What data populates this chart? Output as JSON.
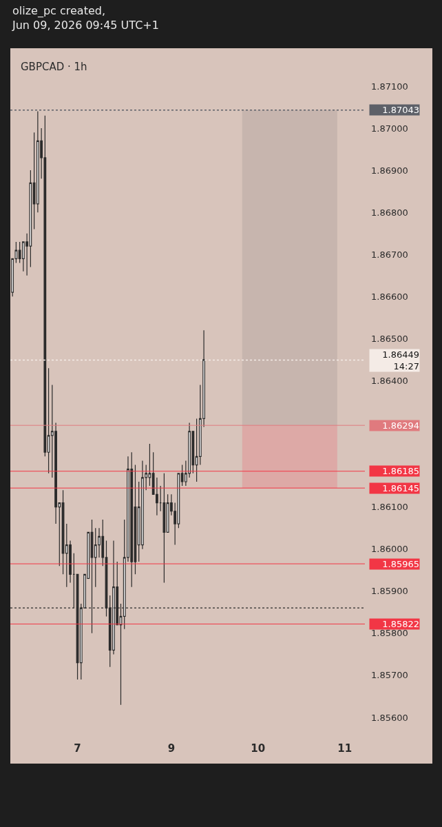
{
  "chart_data": {
    "type": "candlestick",
    "title": "GBPCAD · 1h",
    "annotations": [
      "olize_pc created,\nJun 09, 2026 09:45 UTC+1"
    ],
    "categories": [
      null,
      null,
      null,
      null,
      null,
      null,
      null,
      null,
      null,
      null,
      null,
      null,
      null,
      null,
      null,
      null,
      null,
      null,
      "7",
      null,
      null,
      null,
      null,
      null,
      null,
      null,
      null,
      null,
      null,
      null,
      null,
      null,
      null,
      null,
      null,
      null,
      null,
      null,
      null,
      null,
      null,
      null,
      null,
      null,
      "9",
      null,
      null,
      null,
      null,
      null,
      null,
      null,
      null,
      null,
      null,
      null,
      null,
      null,
      null,
      null,
      null,
      null,
      null,
      null,
      null,
      null,
      null,
      null,
      "10",
      null,
      null,
      null,
      null,
      null,
      null,
      null,
      null,
      null,
      null,
      null,
      null,
      null,
      null,
      null,
      null,
      null,
      null,
      null,
      null,
      null,
      null,
      null,
      "11",
      null,
      null,
      null,
      null,
      null
    ],
    "color": "#2b2b2b",
    "ohlc": [
      [
        1.8661,
        1.8669,
        1.866,
        1.8669
      ],
      [
        1.8669,
        1.8673,
        1.8668,
        1.8671
      ],
      [
        1.8671,
        1.8673,
        1.8668,
        1.8669
      ],
      [
        1.8669,
        1.8673,
        1.8666,
        1.8673
      ],
      [
        1.8673,
        1.8675,
        1.8665,
        1.8672
      ],
      [
        1.8672,
        1.869,
        1.8667,
        1.8687
      ],
      [
        1.8687,
        1.8699,
        1.8676,
        1.8682
      ],
      [
        1.8682,
        1.8704,
        1.868,
        1.8697
      ],
      [
        1.8697,
        1.87,
        1.8688,
        1.8693
      ],
      [
        1.8693,
        1.8703,
        1.8622,
        1.8623
      ],
      [
        1.8623,
        1.8643,
        1.8618,
        1.8627
      ],
      [
        1.8627,
        1.8639,
        1.8617,
        1.8628
      ],
      [
        1.8628,
        1.863,
        1.8606,
        1.861
      ],
      [
        1.861,
        1.8611,
        1.8596,
        1.8611
      ],
      [
        1.8611,
        1.8614,
        1.8594,
        1.8599
      ],
      [
        1.8599,
        1.8606,
        1.8591,
        1.8601
      ],
      [
        1.8601,
        1.8602,
        1.8592,
        1.8594
      ],
      [
        1.8594,
        1.8599,
        1.8586,
        1.8594
      ],
      [
        1.8594,
        1.8594,
        1.8569,
        1.8573
      ],
      [
        1.8573,
        1.8587,
        1.8569,
        1.8586
      ],
      [
        1.8586,
        1.8594,
        1.8586,
        1.8594
      ],
      [
        1.8593,
        1.8604,
        1.8593,
        1.8604
      ],
      [
        1.8604,
        1.8607,
        1.858,
        1.8598
      ],
      [
        1.8598,
        1.8605,
        1.8591,
        1.8601
      ],
      [
        1.8601,
        1.8605,
        1.8598,
        1.8603
      ],
      [
        1.8603,
        1.8607,
        1.8596,
        1.8598
      ],
      [
        1.8598,
        1.8602,
        1.8584,
        1.8586
      ],
      [
        1.8586,
        1.8589,
        1.8572,
        1.8576
      ],
      [
        1.8576,
        1.8602,
        1.8575,
        1.8591
      ],
      [
        1.8591,
        1.8597,
        1.8582,
        1.8582
      ],
      [
        1.8582,
        1.8587,
        1.8563,
        1.8584
      ],
      [
        1.8584,
        1.8607,
        1.8581,
        1.8598
      ],
      [
        1.8598,
        1.8622,
        1.8597,
        1.8619
      ],
      [
        1.8619,
        1.8623,
        1.8591,
        1.8597
      ],
      [
        1.861,
        1.862,
        1.8594,
        1.8597
      ],
      [
        1.8601,
        1.8616,
        1.8597,
        1.861
      ],
      [
        1.8601,
        1.8621,
        1.86,
        1.8617
      ],
      [
        1.8617,
        1.862,
        1.8614,
        1.8618
      ],
      [
        1.8617,
        1.8625,
        1.8615,
        1.8618
      ],
      [
        1.8618,
        1.8623,
        1.8613,
        1.8613
      ],
      [
        1.8613,
        1.8617,
        1.8608,
        1.8611
      ],
      [
        1.8611,
        1.8615,
        1.8609,
        1.8611
      ],
      [
        1.8611,
        1.8618,
        1.8592,
        1.8604
      ],
      [
        1.8604,
        1.8613,
        1.8604,
        1.8611
      ],
      [
        1.8611,
        1.8613,
        1.8608,
        1.8609
      ],
      [
        1.8609,
        1.8611,
        1.8601,
        1.8606
      ],
      [
        1.8606,
        1.8618,
        1.8605,
        1.8618
      ],
      [
        1.8618,
        1.862,
        1.8615,
        1.8616
      ],
      [
        1.8616,
        1.8621,
        1.8615,
        1.8618
      ],
      [
        1.8618,
        1.863,
        1.8617,
        1.8628
      ],
      [
        1.8628,
        1.8628,
        1.8618,
        1.862
      ],
      [
        1.862,
        1.8631,
        1.8616,
        1.8622
      ],
      [
        1.8622,
        1.8639,
        1.862,
        1.8631
      ],
      [
        1.8631,
        1.8652,
        1.8629,
        1.8645
      ],
      null,
      null,
      null,
      null,
      null,
      null,
      null,
      null,
      null,
      null,
      null,
      null,
      null,
      null,
      null,
      null,
      null,
      null,
      null,
      null,
      null,
      null,
      null,
      null,
      null,
      null,
      null,
      null,
      null,
      null,
      null,
      null,
      null,
      null,
      null,
      null,
      null,
      null,
      null,
      null,
      null,
      null,
      null,
      null
    ],
    "ylim": [
      1.856,
      1.8719
    ],
    "yticks": [
      {
        "value": 1.856,
        "label": "1.85600"
      },
      {
        "value": 1.857,
        "label": "1.85700"
      },
      {
        "value": 1.858,
        "label": "1.85800"
      },
      {
        "value": 1.859,
        "label": "1.85900"
      },
      {
        "value": 1.86,
        "label": "1.86000"
      },
      {
        "value": 1.861,
        "label": "1.86100"
      },
      {
        "value": 1.864,
        "label": "1.86400"
      },
      {
        "value": 1.865,
        "label": "1.86500"
      },
      {
        "value": 1.866,
        "label": "1.86600"
      },
      {
        "value": 1.867,
        "label": "1.86700"
      },
      {
        "value": 1.868,
        "label": "1.86800"
      },
      {
        "value": 1.869,
        "label": "1.86900"
      },
      {
        "value": 1.87,
        "label": "1.87000"
      },
      {
        "value": 1.871,
        "label": "1.87100"
      }
    ],
    "ref_lines": [
      {
        "axis": "y",
        "value": 1.87043,
        "label": "1.87043",
        "color": "#5d6068",
        "line_style": "dotted"
      },
      {
        "axis": "y",
        "value": 1.86449,
        "label": "1.86449\n14:27",
        "color": "#f4ebe6",
        "line_style": "dotted"
      },
      {
        "axis": "y",
        "value": 1.86294,
        "label": "1.86294",
        "color": "#e07a7e",
        "line_style": "solid"
      },
      {
        "axis": "y",
        "value": 1.86185,
        "label": "1.86185",
        "color": "#f23645",
        "line_style": "solid"
      },
      {
        "axis": "y",
        "value": 1.86145,
        "label": "1.86145",
        "color": "#f23645",
        "line_style": "solid"
      },
      {
        "axis": "y",
        "value": 1.85965,
        "label": "1.85965",
        "color": "#f23645",
        "line_style": "solid"
      },
      {
        "axis": "y",
        "value": 1.85822,
        "label": "1.85822",
        "color": "#f23645",
        "line_style": "solid"
      },
      {
        "axis": "y",
        "value": 1.8586,
        "label": null,
        "color": "#2b2b2b",
        "line_style": "dotted"
      }
    ],
    "bands": [
      {
        "axis": "y",
        "from": 1.86294,
        "to": 1.87043,
        "color": "#c4b3ab"
      },
      {
        "axis": "y",
        "from": 1.86145,
        "to": 1.86294,
        "color": "#dea4a2"
      }
    ]
  }
}
